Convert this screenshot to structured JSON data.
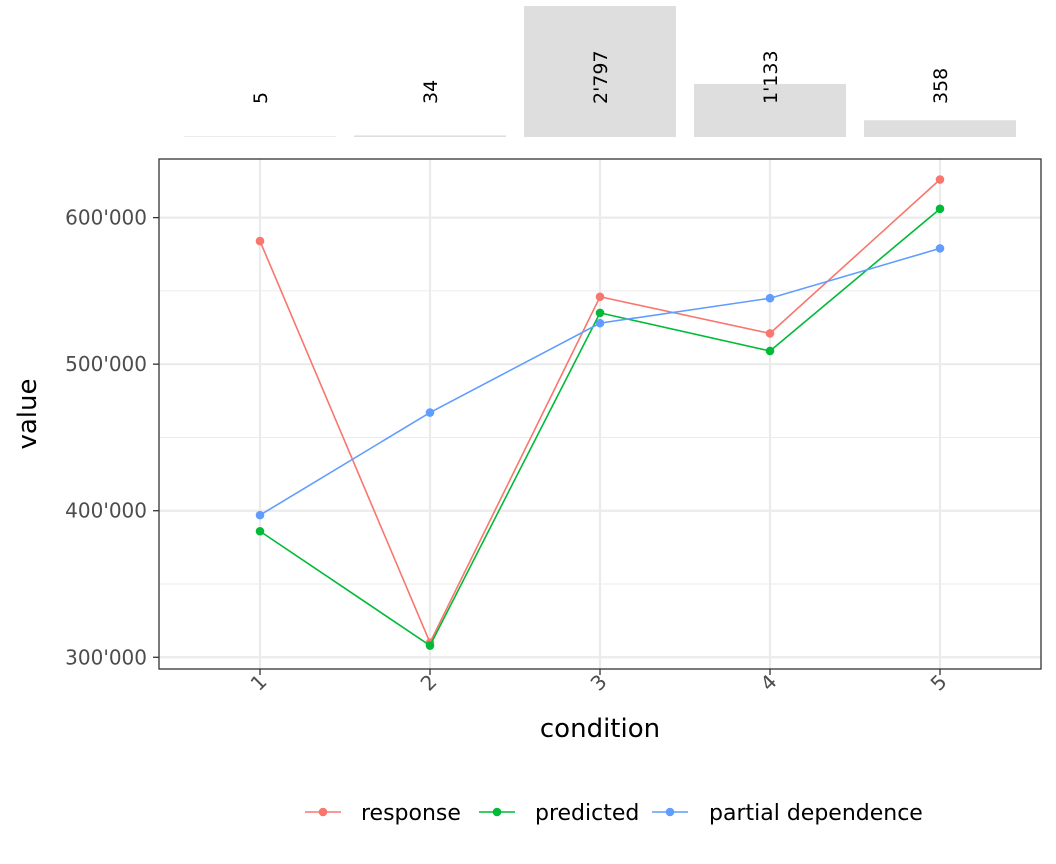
{
  "chart_data": {
    "type": "line",
    "xlabel": "condition",
    "ylabel": "value",
    "categories": [
      "1",
      "2",
      "3",
      "4",
      "5"
    ],
    "ylim": [
      292000,
      640000
    ],
    "y_ticks": [
      300000,
      400000,
      500000,
      600000
    ],
    "y_tick_labels": [
      "300'000",
      "400'000",
      "500'000",
      "600'000"
    ],
    "grid": true,
    "legend_position": "bottom",
    "series": [
      {
        "name": "response",
        "color": "#F8766D",
        "values": [
          584000,
          310000,
          546000,
          521000,
          626000
        ]
      },
      {
        "name": "predicted",
        "color": "#00BA38",
        "values": [
          386000,
          308000,
          535000,
          509000,
          606000
        ]
      },
      {
        "name": "partial dependence",
        "color": "#619CFF",
        "values": [
          397000,
          467000,
          528000,
          545000,
          579000
        ]
      }
    ],
    "counts": {
      "values": [
        5,
        34,
        2797,
        1133,
        358
      ],
      "labels": [
        "5",
        "34",
        "2'797",
        "1'133",
        "358"
      ],
      "bar_color": "#dedede"
    }
  }
}
